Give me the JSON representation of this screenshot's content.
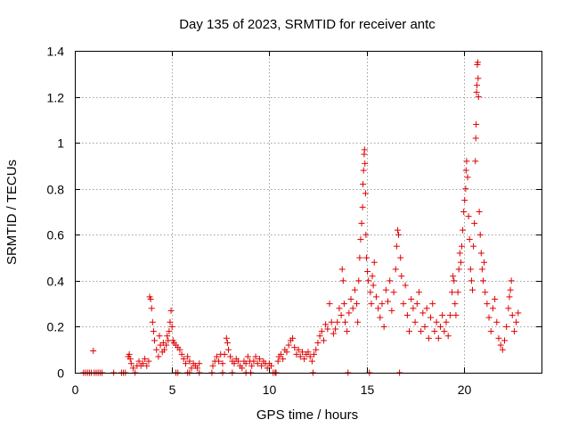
{
  "chart_data": {
    "type": "scatter",
    "title": "Day 135 of 2023, SRMTID for receiver antc",
    "xlabel": "GPS time / hours",
    "ylabel": "SRMTID / TECUs",
    "xlim": [
      0,
      24
    ],
    "ylim": [
      0,
      1.4
    ],
    "xticks": [
      0,
      5,
      10,
      15,
      20
    ],
    "xtick_labels": [
      "0",
      "5",
      "10",
      "15",
      "20"
    ],
    "yticks": [
      0,
      0.2,
      0.4,
      0.6,
      0.8,
      1.0,
      1.2,
      1.4
    ],
    "ytick_labels": [
      "0",
      "0.2",
      "0.4",
      "0.6",
      "0.8",
      "1",
      "1.2",
      "1.4"
    ],
    "grid": true,
    "marker": "+",
    "marker_color": "#e00000",
    "series": [
      {
        "name": "antc",
        "points": [
          [
            0.45,
            0.0
          ],
          [
            0.55,
            0.0
          ],
          [
            0.65,
            0.0
          ],
          [
            0.75,
            0.0
          ],
          [
            0.85,
            0.0
          ],
          [
            0.95,
            0.095
          ],
          [
            1.0,
            0.0
          ],
          [
            1.1,
            0.0
          ],
          [
            1.2,
            0.0
          ],
          [
            1.3,
            0.0
          ],
          [
            1.4,
            0.0
          ],
          [
            2.0,
            0.0
          ],
          [
            2.4,
            0.0
          ],
          [
            2.5,
            0.0
          ],
          [
            2.6,
            0.0
          ],
          [
            2.75,
            0.07
          ],
          [
            2.8,
            0.08
          ],
          [
            2.85,
            0.06
          ],
          [
            2.9,
            0.04
          ],
          [
            3.0,
            0.02
          ],
          [
            3.1,
            0.0
          ],
          [
            3.2,
            0.03
          ],
          [
            3.3,
            0.05
          ],
          [
            3.4,
            0.03
          ],
          [
            3.5,
            0.04
          ],
          [
            3.6,
            0.06
          ],
          [
            3.7,
            0.03
          ],
          [
            3.8,
            0.05
          ],
          [
            3.85,
            0.33
          ],
          [
            3.9,
            0.32
          ],
          [
            3.95,
            0.28
          ],
          [
            4.0,
            0.22
          ],
          [
            4.05,
            0.18
          ],
          [
            4.1,
            0.14
          ],
          [
            4.2,
            0.1
          ],
          [
            4.3,
            0.07
          ],
          [
            4.35,
            0.16
          ],
          [
            4.4,
            0.12
          ],
          [
            4.5,
            0.09
          ],
          [
            4.55,
            0.13
          ],
          [
            4.6,
            0.1
          ],
          [
            4.7,
            0.12
          ],
          [
            4.75,
            0.16
          ],
          [
            4.8,
            0.14
          ],
          [
            4.85,
            0.18
          ],
          [
            4.9,
            0.22
          ],
          [
            4.95,
            0.27
          ],
          [
            5.0,
            0.2
          ],
          [
            5.05,
            0.14
          ],
          [
            5.1,
            0.13
          ],
          [
            5.2,
            0.12
          ],
          [
            5.3,
            0.11
          ],
          [
            5.4,
            0.1
          ],
          [
            5.5,
            0.08
          ],
          [
            5.6,
            0.06
          ],
          [
            5.7,
            0.04
          ],
          [
            5.8,
            0.07
          ],
          [
            5.9,
            0.05
          ],
          [
            6.0,
            0.02
          ],
          [
            6.1,
            0.04
          ],
          [
            6.2,
            0.03
          ],
          [
            6.3,
            0.02
          ],
          [
            6.4,
            0.04
          ],
          [
            5.2,
            0.0
          ],
          [
            5.3,
            0.0
          ],
          [
            5.8,
            0.0
          ],
          [
            5.9,
            0.0
          ],
          [
            6.4,
            0.0
          ],
          [
            7.05,
            0.0
          ],
          [
            7.1,
            0.03
          ],
          [
            7.2,
            0.05
          ],
          [
            7.3,
            0.07
          ],
          [
            7.4,
            0.05
          ],
          [
            7.5,
            0.08
          ],
          [
            7.6,
            0.04
          ],
          [
            7.7,
            0.08
          ],
          [
            7.8,
            0.15
          ],
          [
            7.85,
            0.13
          ],
          [
            7.9,
            0.1
          ],
          [
            8.0,
            0.07
          ],
          [
            8.1,
            0.05
          ],
          [
            8.2,
            0.04
          ],
          [
            8.3,
            0.06
          ],
          [
            8.4,
            0.05
          ],
          [
            8.5,
            0.03
          ],
          [
            8.6,
            0.02
          ],
          [
            8.7,
            0.05
          ],
          [
            8.8,
            0.04
          ],
          [
            8.9,
            0.07
          ],
          [
            9.0,
            0.05
          ],
          [
            9.1,
            0.03
          ],
          [
            9.2,
            0.05
          ],
          [
            9.3,
            0.07
          ],
          [
            9.4,
            0.04
          ],
          [
            9.5,
            0.06
          ],
          [
            9.6,
            0.03
          ],
          [
            9.7,
            0.05
          ],
          [
            9.8,
            0.04
          ],
          [
            9.9,
            0.02
          ],
          [
            10.0,
            0.04
          ],
          [
            10.1,
            0.03
          ],
          [
            7.6,
            0.0
          ],
          [
            8.1,
            0.0
          ],
          [
            8.8,
            0.0
          ],
          [
            9.05,
            0.0
          ],
          [
            10.2,
            0.0
          ],
          [
            10.3,
            0.0
          ],
          [
            10.35,
            0.0
          ],
          [
            10.45,
            0.05
          ],
          [
            10.5,
            0.07
          ],
          [
            10.6,
            0.08
          ],
          [
            10.7,
            0.06
          ],
          [
            10.8,
            0.1
          ],
          [
            10.9,
            0.09
          ],
          [
            11.0,
            0.12
          ],
          [
            11.1,
            0.14
          ],
          [
            11.2,
            0.15
          ],
          [
            11.3,
            0.11
          ],
          [
            11.4,
            0.08
          ],
          [
            11.5,
            0.1
          ],
          [
            11.6,
            0.07
          ],
          [
            11.7,
            0.09
          ],
          [
            11.8,
            0.06
          ],
          [
            11.9,
            0.08
          ],
          [
            12.0,
            0.09
          ],
          [
            12.1,
            0.07
          ],
          [
            12.2,
            0.05
          ],
          [
            12.25,
            0.0
          ],
          [
            12.3,
            0.08
          ],
          [
            12.4,
            0.1
          ],
          [
            12.5,
            0.13
          ],
          [
            12.6,
            0.16
          ],
          [
            12.7,
            0.18
          ],
          [
            12.8,
            0.14
          ],
          [
            12.9,
            0.21
          ],
          [
            13.0,
            0.19
          ],
          [
            13.1,
            0.3
          ],
          [
            13.2,
            0.22
          ],
          [
            13.3,
            0.17
          ],
          [
            13.4,
            0.19
          ],
          [
            13.5,
            0.22
          ],
          [
            13.6,
            0.28
          ],
          [
            13.7,
            0.25
          ],
          [
            13.75,
            0.45
          ],
          [
            13.8,
            0.4
          ],
          [
            13.85,
            0.3
          ],
          [
            13.9,
            0.22
          ],
          [
            14.0,
            0.18
          ],
          [
            14.05,
            0.0
          ],
          [
            14.1,
            0.26
          ],
          [
            14.2,
            0.32
          ],
          [
            14.3,
            0.28
          ],
          [
            14.4,
            0.36
          ],
          [
            14.5,
            0.3
          ],
          [
            14.55,
            0.22
          ],
          [
            14.6,
            0.4
          ],
          [
            14.65,
            0.5
          ],
          [
            14.7,
            0.58
          ],
          [
            14.75,
            0.65
          ],
          [
            14.8,
            0.72
          ],
          [
            14.82,
            0.82
          ],
          [
            14.85,
            0.88
          ],
          [
            14.88,
            0.95
          ],
          [
            14.9,
            0.97
          ],
          [
            14.92,
            0.91
          ],
          [
            14.95,
            0.78
          ],
          [
            14.97,
            0.6
          ],
          [
            15.0,
            0.5
          ],
          [
            15.05,
            0.44
          ],
          [
            15.1,
            0.4
          ],
          [
            15.15,
            0.0
          ],
          [
            15.2,
            0.35
          ],
          [
            15.25,
            0.3
          ],
          [
            15.3,
            0.42
          ],
          [
            15.35,
            0.38
          ],
          [
            15.4,
            0.48
          ],
          [
            15.5,
            0.33
          ],
          [
            15.6,
            0.28
          ],
          [
            15.7,
            0.24
          ],
          [
            15.8,
            0.3
          ],
          [
            15.9,
            0.2
          ],
          [
            16.0,
            0.36
          ],
          [
            16.1,
            0.31
          ],
          [
            16.2,
            0.4
          ],
          [
            16.3,
            0.27
          ],
          [
            16.4,
            0.35
          ],
          [
            16.5,
            0.45
          ],
          [
            16.55,
            0.55
          ],
          [
            16.6,
            0.62
          ],
          [
            16.65,
            0.6
          ],
          [
            16.7,
            0.0
          ],
          [
            16.75,
            0.5
          ],
          [
            16.8,
            0.42
          ],
          [
            16.9,
            0.3
          ],
          [
            17.0,
            0.38
          ],
          [
            17.1,
            0.25
          ],
          [
            17.2,
            0.18
          ],
          [
            17.3,
            0.32
          ],
          [
            17.4,
            0.28
          ],
          [
            17.5,
            0.22
          ],
          [
            17.6,
            0.3
          ],
          [
            17.7,
            0.35
          ],
          [
            17.8,
            0.18
          ],
          [
            17.9,
            0.26
          ],
          [
            18.0,
            0.2
          ],
          [
            18.1,
            0.28
          ],
          [
            18.2,
            0.15
          ],
          [
            18.3,
            0.24
          ],
          [
            18.4,
            0.3
          ],
          [
            18.5,
            0.18
          ],
          [
            18.6,
            0.22
          ],
          [
            18.7,
            0.15
          ],
          [
            18.8,
            0.2
          ],
          [
            18.9,
            0.25
          ],
          [
            19.0,
            0.18
          ],
          [
            19.1,
            0.22
          ],
          [
            19.2,
            0.16
          ],
          [
            19.3,
            0.25
          ],
          [
            19.4,
            0.35
          ],
          [
            19.45,
            0.42
          ],
          [
            19.5,
            0.4
          ],
          [
            19.55,
            0.3
          ],
          [
            19.6,
            0.25
          ],
          [
            19.7,
            0.35
          ],
          [
            19.75,
            0.45
          ],
          [
            19.8,
            0.52
          ],
          [
            19.85,
            0.48
          ],
          [
            19.9,
            0.55
          ],
          [
            19.95,
            0.62
          ],
          [
            20.0,
            0.7
          ],
          [
            20.05,
            0.75
          ],
          [
            20.1,
            0.8
          ],
          [
            20.12,
            0.88
          ],
          [
            20.15,
            0.92
          ],
          [
            20.2,
            0.85
          ],
          [
            20.25,
            0.68
          ],
          [
            20.3,
            0.58
          ],
          [
            20.35,
            0.45
          ],
          [
            20.4,
            0.4
          ],
          [
            20.45,
            0.36
          ],
          [
            20.5,
            0.55
          ],
          [
            20.55,
            0.65
          ],
          [
            20.6,
            0.92
          ],
          [
            20.62,
            1.02
          ],
          [
            20.64,
            1.08
          ],
          [
            20.66,
            1.22
          ],
          [
            20.68,
            1.25
          ],
          [
            20.7,
            1.34
          ],
          [
            20.72,
            1.35
          ],
          [
            20.74,
            1.28
          ],
          [
            20.76,
            1.2
          ],
          [
            20.8,
            0.7
          ],
          [
            20.85,
            0.6
          ],
          [
            20.9,
            0.52
          ],
          [
            20.95,
            0.45
          ],
          [
            21.0,
            0.4
          ],
          [
            21.05,
            0.48
          ],
          [
            21.1,
            0.35
          ],
          [
            21.2,
            0.3
          ],
          [
            21.3,
            0.24
          ],
          [
            21.4,
            0.18
          ],
          [
            21.5,
            0.28
          ],
          [
            21.6,
            0.32
          ],
          [
            21.7,
            0.22
          ],
          [
            21.8,
            0.15
          ],
          [
            21.9,
            0.12
          ],
          [
            22.0,
            0.1
          ],
          [
            22.1,
            0.14
          ],
          [
            22.2,
            0.2
          ],
          [
            22.3,
            0.28
          ],
          [
            22.35,
            0.33
          ],
          [
            22.4,
            0.36
          ],
          [
            22.45,
            0.4
          ],
          [
            22.5,
            0.25
          ],
          [
            22.6,
            0.18
          ],
          [
            22.7,
            0.22
          ],
          [
            22.8,
            0.26
          ]
        ]
      }
    ]
  }
}
